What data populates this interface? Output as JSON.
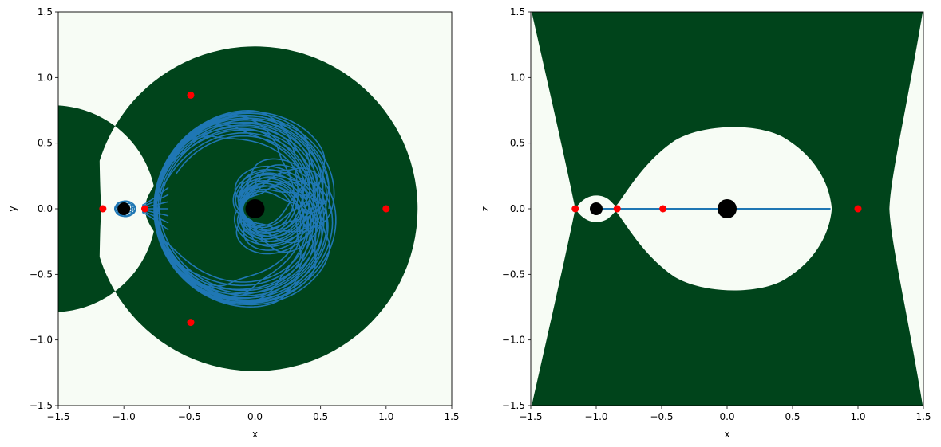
{
  "chart_data": [
    {
      "type": "contour-orbit",
      "xlabel": "x",
      "ylabel": "y",
      "xlim": [
        -1.5,
        1.5
      ],
      "ylim": [
        -1.5,
        1.5
      ],
      "xticks": [
        "−1.5",
        "−1.0",
        "−0.5",
        "0.0",
        "0.5",
        "1.0",
        "1.5"
      ],
      "yticks": [
        "−1.5",
        "−1.0",
        "−0.5",
        "0.0",
        "0.5",
        "1.0",
        "1.5"
      ],
      "grid": false,
      "colors": {
        "forbidden": "#00441b",
        "allowed": "#f7fcf5",
        "orbit": "#1f77b4",
        "lagrange": "#ff0000",
        "bodies": "#000000"
      },
      "forbidden_region": {
        "shape": "annulus",
        "center": [
          0,
          0
        ],
        "outer_radius": 1.24,
        "inner_radius": 0.79
      },
      "primary": {
        "x": 0.0,
        "y": 0.0,
        "size": "large"
      },
      "secondary": {
        "x": -1.0,
        "y": 0.0,
        "size": "small"
      },
      "lagrange_points": [
        {
          "x": -1.16,
          "y": 0.0
        },
        {
          "x": -0.84,
          "y": 0.0
        },
        {
          "x": 1.0,
          "y": 0.0
        },
        {
          "x": -0.49,
          "y": 0.866
        },
        {
          "x": -0.49,
          "y": -0.866
        }
      ],
      "orbit": {
        "region": "inside inner boundary",
        "max_radius": 0.77
      }
    },
    {
      "type": "contour-orbit",
      "xlabel": "x",
      "ylabel": "z",
      "xlim": [
        -1.5,
        1.5
      ],
      "ylim": [
        -1.5,
        1.5
      ],
      "xticks": [
        "−1.5",
        "−1.0",
        "−0.5",
        "0.0",
        "0.5",
        "1.0",
        "1.5"
      ],
      "yticks": [
        "−1.5",
        "−1.0",
        "−0.5",
        "0.0",
        "0.5",
        "1.0",
        "1.5"
      ],
      "grid": false,
      "colors": {
        "forbidden": "#00441b",
        "allowed": "#f7fcf5",
        "orbit": "#1f77b4",
        "lagrange": "#ff0000",
        "bodies": "#000000"
      },
      "primary": {
        "x": 0.0,
        "y": 0.0,
        "size": "large"
      },
      "secondary": {
        "x": -1.0,
        "y": 0.0,
        "size": "small"
      },
      "lagrange_points": [
        {
          "x": -1.16,
          "y": 0.0
        },
        {
          "x": -0.84,
          "y": 0.0
        },
        {
          "x": -0.49,
          "y": 0.0
        },
        {
          "x": 1.0,
          "y": 0.0
        }
      ],
      "orbit": {
        "x_range": [
          -1.0,
          0.79
        ],
        "z": 0.0
      }
    }
  ]
}
